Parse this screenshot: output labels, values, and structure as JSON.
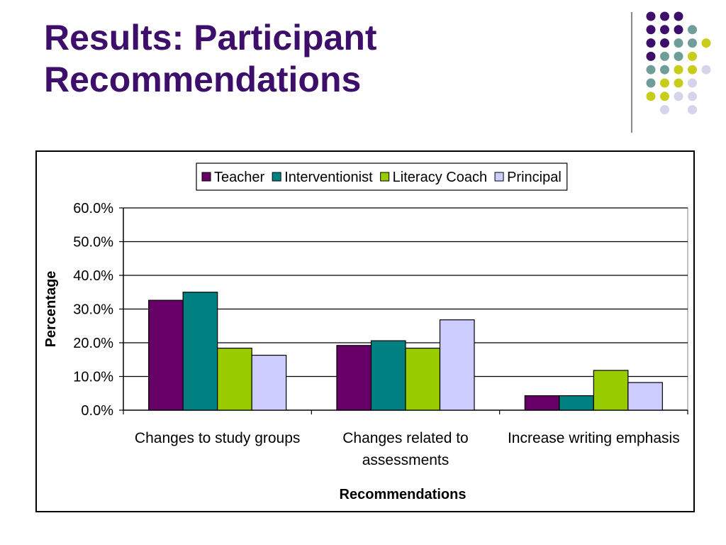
{
  "slide": {
    "title_lines": [
      "Results: Participant",
      "Recommendations"
    ]
  },
  "decor": {
    "dot_colors": {
      "purple": "#3d0f6b",
      "teal": "#6f9e9a",
      "yellow": "#c8cc1a",
      "lavender": "#d4d4ea"
    }
  },
  "chart_data": {
    "type": "bar",
    "categories": [
      [
        "Changes to study groups"
      ],
      [
        "Changes related to",
        "assessments"
      ],
      [
        "Increase writing emphasis"
      ]
    ],
    "series": [
      {
        "name": "Teacher",
        "color": "#660066",
        "values": [
          32.6,
          19.2,
          4.3
        ]
      },
      {
        "name": "Interventionist",
        "color": "#008080",
        "values": [
          35.0,
          20.6,
          4.3
        ]
      },
      {
        "name": "Literacy Coach",
        "color": "#99cc00",
        "values": [
          18.4,
          18.4,
          11.8
        ]
      },
      {
        "name": "Principal",
        "color": "#ccccff",
        "values": [
          16.3,
          26.8,
          8.2
        ]
      }
    ],
    "xlabel": "Recommendations",
    "ylabel": "Percentage",
    "ylim": [
      0,
      60
    ],
    "ytick_step": 10,
    "ytick_format": "%.1f%",
    "grid": true,
    "legend_position": "top"
  }
}
